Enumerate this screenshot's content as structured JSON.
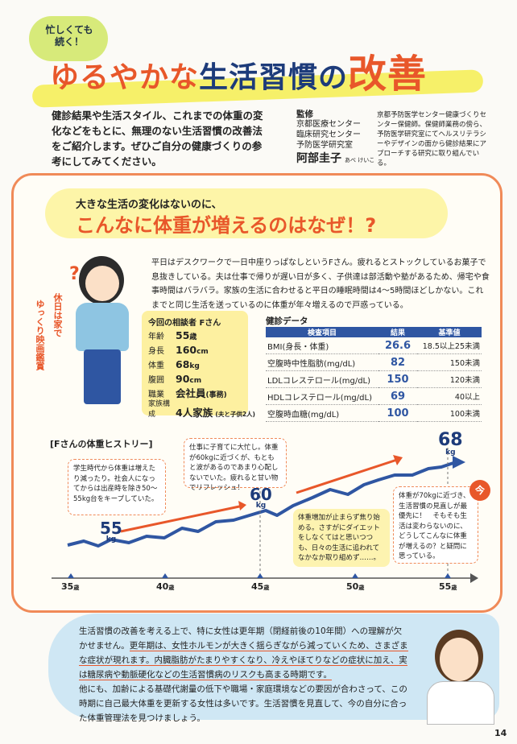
{
  "header": {
    "bubble_line1": "忙しくても",
    "bubble_line2": "続く！",
    "title_part1": "ゆるやかな",
    "title_part2": "生活習慣の",
    "title_part3": "改善"
  },
  "intro": "健診結果や生活スタイル、これまでの体重の変化などをもとに、無理のない生活習慣の改善法をご紹介します。ぜひご自分の健康づくりの参考にしてみてください。",
  "supervisor": {
    "label": "監修",
    "line1": "京都医療センター",
    "line2": "臨床研究センター",
    "line3": "予防医学研究室",
    "name": "阿部圭子",
    "reading": "あべ けいこ",
    "description": "京都予防医学センター健康づくりセンター保健師。保健師業務の傍ら、予防医学研究室にてヘルスリテラシーやデザインの面から健診結果にアプローチする研究に取り組んでいる。"
  },
  "question": {
    "small": "大きな生活の変化はないのに、",
    "big": "こんなに体重が増えるのはなぜ！?"
  },
  "case_text": "平日はデスクワークで一日中座りっぱなしというFさん。疲れるとストックしているお菓子で息抜きしている。夫は仕事で帰りが遅い日が多く、子供達は部活動や塾があるため、帰宅や食事時間はバラバラ。家族の生活に合わせると平日の睡眠時間は4～5時間ほどしかない。これまでと同じ生活を送っているのに体重が年々増えるので戸惑っている。",
  "woman_note_line1": "休日は家で",
  "woman_note_line2": "ゆっくり映画鑑賞",
  "profile": {
    "title": "今回の相談者 Fさん",
    "rows": [
      {
        "key": "年齢",
        "value": "55",
        "unit": "歳"
      },
      {
        "key": "身長",
        "value": "160",
        "unit": "cm"
      },
      {
        "key": "体重",
        "value": "68",
        "unit": "kg"
      },
      {
        "key": "腹囲",
        "value": "90",
        "unit": "cm"
      },
      {
        "key": "職業",
        "value": "会社員",
        "unit": "(事務)"
      },
      {
        "key": "家族構成",
        "value": "4人家族",
        "unit": "(夫と子供2人)"
      }
    ]
  },
  "checkup": {
    "title": "健診データ",
    "headers": [
      "検査項目",
      "結果",
      "基準値"
    ],
    "rows": [
      {
        "item": "BMI(身長・体重)",
        "result": "26.6",
        "standard": "18.5以上25未満"
      },
      {
        "item": "空腹時中性脂肪(mg/dL)",
        "result": "82",
        "standard": "150未満"
      },
      {
        "item": "LDLコレステロール(mg/dL)",
        "result": "150",
        "standard": "120未満"
      },
      {
        "item": "HDLコレステロール(mg/dL)",
        "result": "69",
        "standard": "40以上"
      },
      {
        "item": "空腹時血糖(mg/dL)",
        "result": "100",
        "standard": "100未満"
      }
    ]
  },
  "history": {
    "title": "[Fさんの体重ヒストリー]",
    "unit": "kg",
    "weight_labels": [
      "55",
      "60",
      "68"
    ],
    "ages": [
      "35",
      "40",
      "45",
      "50",
      "55"
    ],
    "age_unit": "歳",
    "notes": [
      "学生時代から体重は増えたり減ったり。社会人になってからは出産時を除き50～55kg台をキープしていた。",
      "仕事に子育てに大忙し。体重が60kgに近づくが、もともと波があるのであまり心配しないでいた。疲れると甘い物でリフレッシュ！",
      "体重増加が止まらず焦り始める。さすがにダイエットをしなくてはと思いつつも、日々の生活に追われてなかなか取り組めず……。",
      "体重が70kgに近づき、生活習慣の見直しが最優先に！　そもそも生活は変わらないのに、どうしてこんなに体重が増えるの？と疑問に思っている。"
    ],
    "now_badge": "今"
  },
  "bottom": {
    "p1_a": "生活習慣の改善を考える上で、特に女性は更年期（閉経前後の10年間）への理解が欠かせません。",
    "p1_b": "更年期は、女性ホルモンが大きく揺らぎながら減っていくため、さまざまな症状が現れます。内臓脂肪がたまりやすくなり、冷えやほてりなどの症状に加え、実は糖尿病や動脈硬化などの生活習慣病のリスクも高まる時期です。",
    "p2": "他にも、加齢による基礎代謝量の低下や職場・家庭環境などの要因が合わさって、この時期に自己最大体重を更新する女性は多いです。生活習慣を見直して、今の自分に合った体重管理法を見つけましょう。"
  },
  "page_number": "14"
}
